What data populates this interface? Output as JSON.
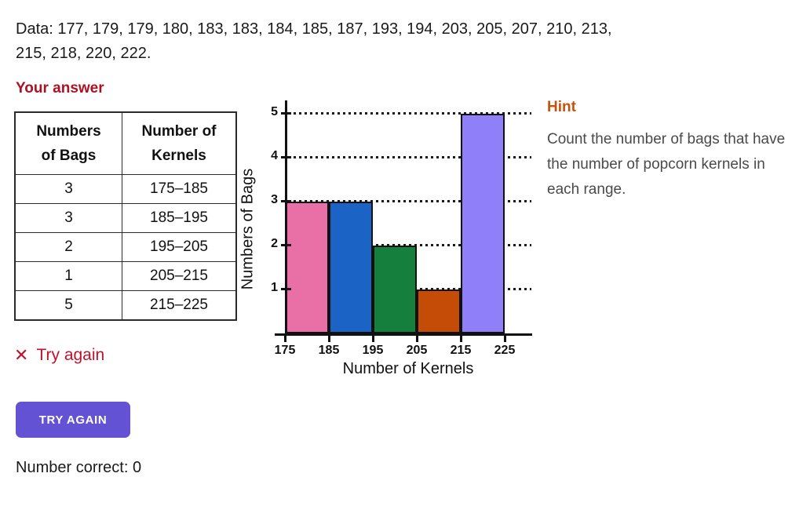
{
  "problem": {
    "data_text": "Data: 177, 179, 179, 180, 183, 183, 184, 185, 187, 193, 194, 203, 205, 207, 210, 213,\n215, 218, 220, 222."
  },
  "answer_section": {
    "heading": "Your answer",
    "heading_color": "#ab1222",
    "table": {
      "headers": [
        "Numbers\nof Bags",
        "Number of\nKernels"
      ],
      "rows": [
        [
          "3",
          "175–185"
        ],
        [
          "3",
          "185–195"
        ],
        [
          "2",
          "195–205"
        ],
        [
          "1",
          "205–215"
        ],
        [
          "5",
          "215–225"
        ]
      ]
    }
  },
  "chart_data": {
    "type": "bar",
    "title": "",
    "xlabel": "Number of Kernels",
    "ylabel": "Numbers of Bags",
    "categories": [
      "175–185",
      "185–195",
      "195–205",
      "205–215",
      "215–225"
    ],
    "values": [
      3,
      3,
      2,
      1,
      5
    ],
    "bar_colors": [
      "#e870a6",
      "#1b63c5",
      "#15803d",
      "#c54c06",
      "#8f80fa"
    ],
    "x_ticks": [
      "175",
      "185",
      "195",
      "205",
      "215",
      "225"
    ],
    "y_ticks": [
      1,
      2,
      3,
      4,
      5
    ],
    "ylim": [
      0,
      5
    ],
    "grid": "horizontal-dotted",
    "legend": "none"
  },
  "hint": {
    "title": "Hint",
    "title_color": "#c5520d",
    "body": "Count the number of bags that have the number of popcorn kernels in each range."
  },
  "feedback": {
    "icon": "✕",
    "label": "Try again",
    "color": "#c1122b"
  },
  "try_again_button": {
    "label": "TRY AGAIN",
    "background": "#6452d4"
  },
  "score": {
    "label": "Number correct:",
    "value": "0"
  }
}
